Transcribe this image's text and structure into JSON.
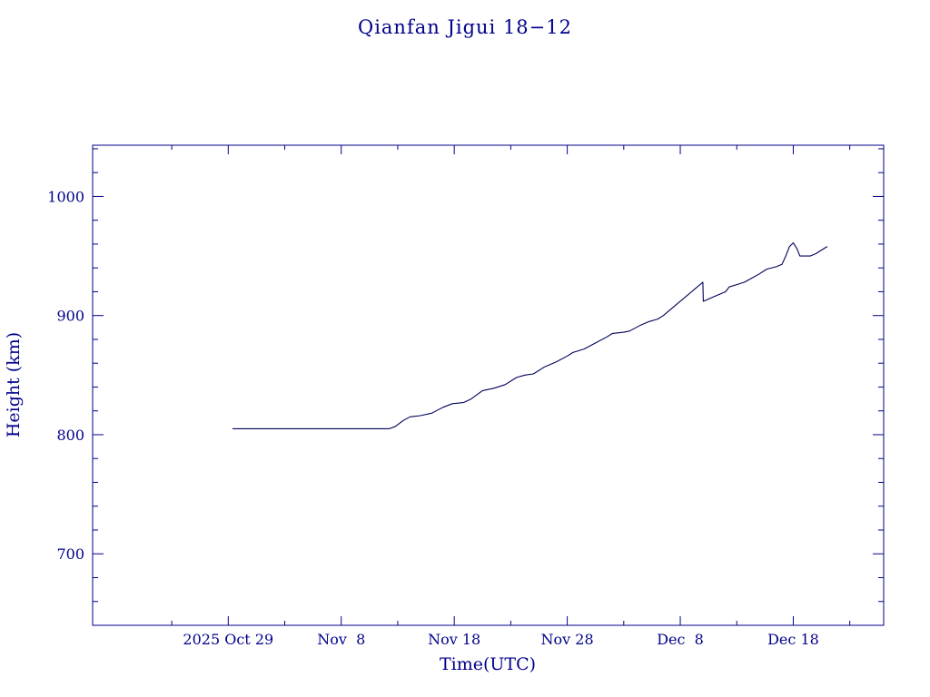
{
  "colors": {
    "axis": "#00008b",
    "text": "#00008b",
    "line": "#00005a",
    "background": "#ffffff"
  },
  "chart_data": {
    "type": "line",
    "title": "Qianfan Jigui 18−12",
    "xlabel": "Time(UTC)",
    "ylabel": "Height (km)",
    "grid": false,
    "legend": "none",
    "xlim": [
      "2025-10-17",
      "2025-12-26"
    ],
    "ylim": [
      640,
      1043
    ],
    "x_tick_labels": [
      {
        "date": "2025-10-29",
        "label": "2025 Oct 29"
      },
      {
        "date": "2025-11-08",
        "label": "Nov  8"
      },
      {
        "date": "2025-11-18",
        "label": "Nov 18"
      },
      {
        "date": "2025-11-28",
        "label": "Nov 28"
      },
      {
        "date": "2025-12-08",
        "label": "Dec  8"
      },
      {
        "date": "2025-12-18",
        "label": "Dec 18"
      }
    ],
    "x_minor_ticks": [
      "2025-10-24",
      "2025-11-03",
      "2025-11-13",
      "2025-11-23",
      "2025-12-03",
      "2025-12-13",
      "2025-12-23"
    ],
    "y_ticks": [
      700,
      800,
      900,
      1000
    ],
    "y_tick_labels": [
      "700",
      "800",
      "900",
      "1000"
    ],
    "y_minor_step": 20,
    "series": [
      {
        "name": "",
        "points": [
          [
            "2025-10-29T09:00",
            805
          ],
          [
            "2025-11-06",
            805
          ],
          [
            "2025-11-12T06:00",
            805
          ],
          [
            "2025-11-12T19:00",
            807
          ],
          [
            "2025-11-13T12:00",
            812
          ],
          [
            "2025-11-14T02:00",
            815
          ],
          [
            "2025-11-15",
            816
          ],
          [
            "2025-11-16",
            818
          ],
          [
            "2025-11-17",
            823
          ],
          [
            "2025-11-17T20:00",
            826
          ],
          [
            "2025-11-18T20:00",
            827
          ],
          [
            "2025-11-19T12:00",
            830
          ],
          [
            "2025-11-20T12:00",
            837
          ],
          [
            "2025-11-21T12:00",
            839
          ],
          [
            "2025-11-22T12:00",
            842
          ],
          [
            "2025-11-23T12:00",
            848
          ],
          [
            "2025-11-24T06:00",
            850
          ],
          [
            "2025-11-25",
            851
          ],
          [
            "2025-11-26",
            857
          ],
          [
            "2025-11-27",
            861
          ],
          [
            "2025-11-28",
            866
          ],
          [
            "2025-11-28T12:00",
            869
          ],
          [
            "2025-11-29T12:00",
            872
          ],
          [
            "2025-11-30T12:00",
            877
          ],
          [
            "2025-12-01T12:00",
            882
          ],
          [
            "2025-12-02",
            885
          ],
          [
            "2025-12-03",
            886
          ],
          [
            "2025-12-03T12:00",
            887
          ],
          [
            "2025-12-04T12:00",
            892
          ],
          [
            "2025-12-05T06:00",
            895
          ],
          [
            "2025-12-06",
            897
          ],
          [
            "2025-12-06T12:00",
            900
          ],
          [
            "2025-12-07T12:00",
            908
          ],
          [
            "2025-12-08T12:00",
            916
          ],
          [
            "2025-12-09T12:00",
            924
          ],
          [
            "2025-12-10",
            928
          ],
          [
            "2025-12-10T01:00",
            912
          ],
          [
            "2025-12-11",
            916
          ],
          [
            "2025-12-12",
            920
          ],
          [
            "2025-12-12T08:00",
            924
          ],
          [
            "2025-12-13",
            926
          ],
          [
            "2025-12-13T16:00",
            928
          ],
          [
            "2025-12-14T06:00",
            931
          ],
          [
            "2025-12-15",
            935
          ],
          [
            "2025-12-15T16:00",
            939
          ],
          [
            "2025-12-16T12:00",
            941
          ],
          [
            "2025-12-17",
            943
          ],
          [
            "2025-12-17T08:00",
            950
          ],
          [
            "2025-12-17T16:00",
            958
          ],
          [
            "2025-12-18",
            961
          ],
          [
            "2025-12-18T08:00",
            956
          ],
          [
            "2025-12-18T14:00",
            950
          ],
          [
            "2025-12-19T12:00",
            950
          ],
          [
            "2025-12-20",
            952
          ],
          [
            "2025-12-20T12:00",
            955
          ],
          [
            "2025-12-21",
            958
          ]
        ]
      }
    ]
  }
}
